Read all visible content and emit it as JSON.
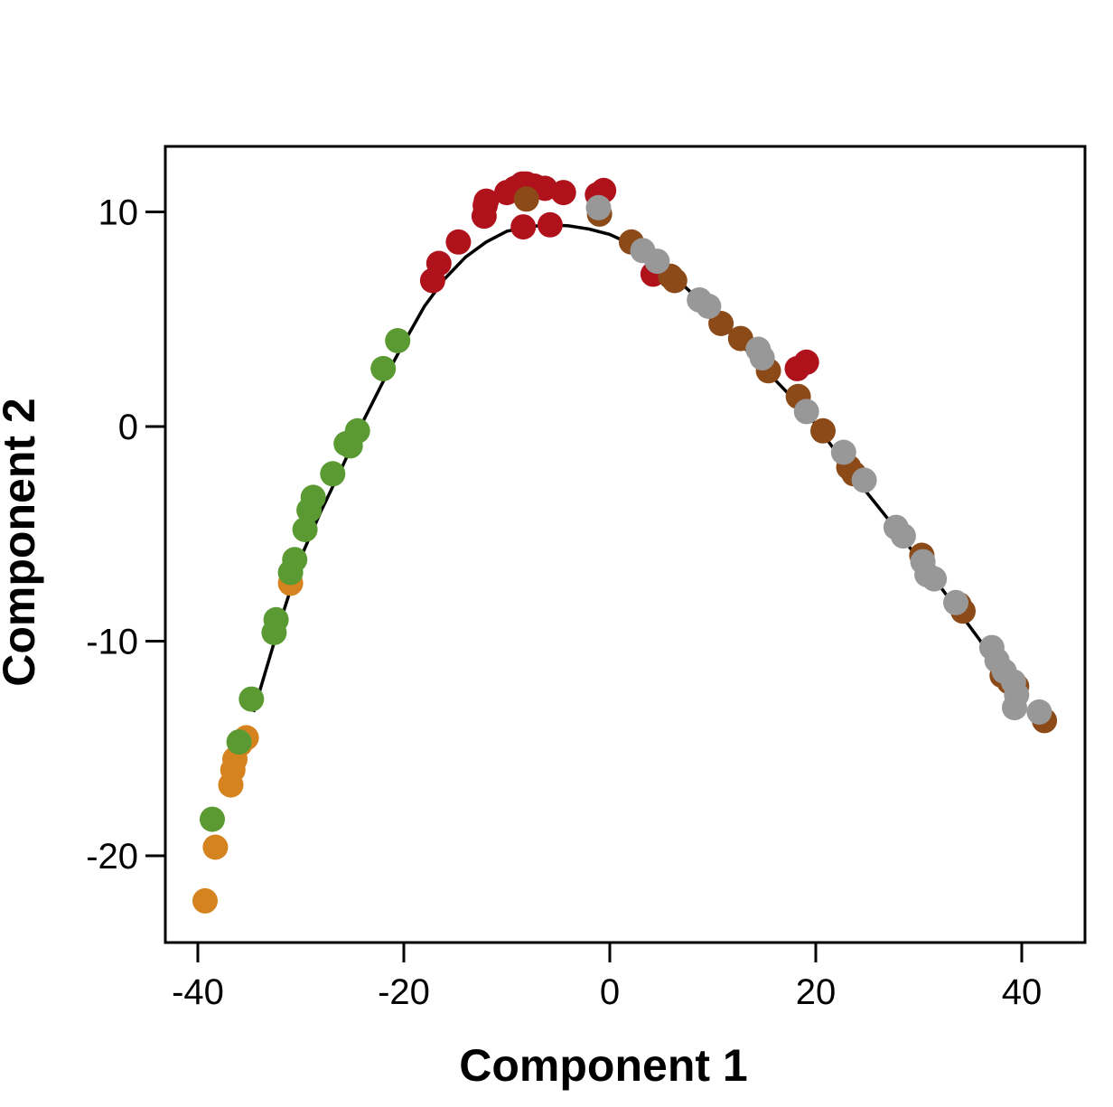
{
  "chart_data": {
    "type": "scatter",
    "title": "",
    "xlabel": "Component 1",
    "ylabel": "Component 2",
    "xlim": [
      -42,
      46
    ],
    "ylim": [
      -23,
      13
    ],
    "x_ticks": [
      -40,
      -20,
      0,
      20,
      40
    ],
    "y_ticks": [
      -20,
      -10,
      0,
      10
    ],
    "x_tick_labels": [
      "-40",
      "-20",
      "0",
      "20",
      "40"
    ],
    "y_tick_labels": [
      "-20",
      "-10",
      "0",
      "10"
    ],
    "grid": false,
    "legend": "none",
    "point_groups": [
      {
        "color": "#d4831f",
        "points": [
          [
            -39.3,
            -22.1
          ],
          [
            -38.3,
            -19.6
          ],
          [
            -36.8,
            -16.7
          ],
          [
            -36.6,
            -16.0
          ],
          [
            -36.4,
            -15.5
          ],
          [
            -35.9,
            -14.8
          ],
          [
            -35.3,
            -14.5
          ],
          [
            -31.0,
            -7.3
          ]
        ]
      },
      {
        "color": "#5b9a32",
        "points": [
          [
            -38.6,
            -18.3
          ],
          [
            -36.0,
            -14.7
          ],
          [
            -34.8,
            -12.7
          ],
          [
            -32.6,
            -9.6
          ],
          [
            -32.4,
            -9.0
          ],
          [
            -31.0,
            -6.8
          ],
          [
            -30.6,
            -6.2
          ],
          [
            -29.6,
            -4.8
          ],
          [
            -29.2,
            -3.9
          ],
          [
            -28.8,
            -3.3
          ],
          [
            -26.9,
            -2.2
          ],
          [
            -25.6,
            -0.8
          ],
          [
            -25.2,
            -0.9
          ],
          [
            -24.5,
            -0.2
          ],
          [
            -22.0,
            2.7
          ],
          [
            -20.6,
            4.0
          ]
        ]
      },
      {
        "color": "#b0121c",
        "points": [
          [
            -17.2,
            6.8
          ],
          [
            -16.6,
            7.6
          ],
          [
            -14.7,
            8.6
          ],
          [
            -12.2,
            9.8
          ],
          [
            -12.1,
            10.3
          ],
          [
            -12.0,
            10.5
          ],
          [
            -10.0,
            10.9
          ],
          [
            -9.2,
            11.1
          ],
          [
            -8.5,
            11.3
          ],
          [
            -8.4,
            9.3
          ],
          [
            -8.1,
            11.3
          ],
          [
            -7.3,
            11.2
          ],
          [
            -6.3,
            11.1
          ],
          [
            -5.8,
            9.4
          ],
          [
            -4.5,
            10.9
          ],
          [
            -1.2,
            10.8
          ],
          [
            -0.6,
            11.0
          ],
          [
            4.2,
            7.1
          ],
          [
            18.2,
            2.7
          ],
          [
            19.1,
            3.0
          ]
        ]
      },
      {
        "color": "#8b4a18",
        "points": [
          [
            -8.1,
            10.6
          ],
          [
            -1.0,
            9.9
          ],
          [
            2.1,
            8.6
          ],
          [
            5.9,
            7.0
          ],
          [
            6.3,
            6.8
          ],
          [
            10.8,
            4.8
          ],
          [
            12.7,
            4.1
          ],
          [
            15.4,
            2.6
          ],
          [
            18.3,
            1.4
          ],
          [
            20.7,
            -0.2
          ],
          [
            23.2,
            -1.9
          ],
          [
            23.7,
            -2.2
          ],
          [
            30.3,
            -6.0
          ],
          [
            33.9,
            -8.3
          ],
          [
            34.3,
            -8.6
          ],
          [
            38.1,
            -11.6
          ],
          [
            38.8,
            -11.9
          ],
          [
            39.5,
            -12.1
          ],
          [
            42.2,
            -13.7
          ]
        ]
      },
      {
        "color": "#989898",
        "points": [
          [
            -1.1,
            10.2
          ],
          [
            3.2,
            8.2
          ],
          [
            4.6,
            7.7
          ],
          [
            8.7,
            5.9
          ],
          [
            9.6,
            5.6
          ],
          [
            14.4,
            3.6
          ],
          [
            14.8,
            3.2
          ],
          [
            19.1,
            0.7
          ],
          [
            22.7,
            -1.2
          ],
          [
            24.7,
            -2.5
          ],
          [
            27.8,
            -4.7
          ],
          [
            28.5,
            -5.1
          ],
          [
            30.4,
            -6.3
          ],
          [
            30.8,
            -6.9
          ],
          [
            31.5,
            -7.1
          ],
          [
            33.6,
            -8.2
          ],
          [
            37.1,
            -10.3
          ],
          [
            37.6,
            -10.9
          ],
          [
            38.3,
            -11.4
          ],
          [
            39.2,
            -11.9
          ],
          [
            39.5,
            -12.5
          ],
          [
            39.3,
            -13.1
          ],
          [
            41.7,
            -13.3
          ]
        ]
      }
    ],
    "curve": {
      "color": "#000000",
      "points": [
        [
          -34.6,
          -13.3
        ],
        [
          -32.0,
          -9.1
        ],
        [
          -30.0,
          -6.1
        ],
        [
          -28.0,
          -3.9
        ],
        [
          -26.0,
          -1.9
        ],
        [
          -24.0,
          0.2
        ],
        [
          -22.0,
          2.1
        ],
        [
          -20.0,
          3.9
        ],
        [
          -18.0,
          5.6
        ],
        [
          -16.0,
          6.9
        ],
        [
          -14.0,
          7.9
        ],
        [
          -12.0,
          8.6
        ],
        [
          -10.0,
          9.1
        ],
        [
          -8.0,
          9.3
        ],
        [
          -6.0,
          9.4
        ],
        [
          -4.0,
          9.35
        ],
        [
          -2.0,
          9.2
        ],
        [
          0.0,
          8.95
        ],
        [
          2.0,
          8.5
        ],
        [
          4.0,
          8.0
        ],
        [
          6.0,
          7.1
        ],
        [
          8.0,
          6.2
        ],
        [
          10.0,
          5.2
        ],
        [
          12.0,
          4.2
        ],
        [
          14.0,
          3.2
        ],
        [
          16.0,
          2.2
        ],
        [
          18.0,
          1.2
        ],
        [
          20.0,
          0.1
        ],
        [
          22.0,
          -1.2
        ],
        [
          24.0,
          -2.5
        ],
        [
          26.0,
          -3.7
        ],
        [
          28.0,
          -4.9
        ],
        [
          30.0,
          -6.2
        ],
        [
          32.0,
          -7.4
        ],
        [
          34.0,
          -8.7
        ],
        [
          36.0,
          -10.0
        ],
        [
          38.0,
          -11.5
        ],
        [
          39.4,
          -12.5
        ]
      ]
    }
  }
}
